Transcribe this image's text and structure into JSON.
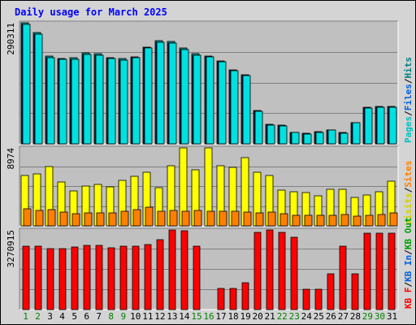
{
  "chart_data": {
    "type": "bar",
    "title": "Daily usage for March 2025",
    "categories": [
      "1",
      "2",
      "3",
      "4",
      "5",
      "6",
      "7",
      "8",
      "9",
      "10",
      "11",
      "12",
      "13",
      "14",
      "15",
      "16",
      "17",
      "18",
      "19",
      "20",
      "21",
      "22",
      "23",
      "24",
      "25",
      "26",
      "27",
      "28",
      "29",
      "30",
      "31"
    ],
    "weekend_days": [
      1,
      2,
      8,
      9,
      15,
      16,
      22,
      23,
      29,
      30
    ],
    "panels": [
      {
        "id": "top",
        "ymax_label": "290311",
        "ymax": 290311,
        "legend": [
          {
            "text": "Pages",
            "color": "#00c0c0"
          },
          {
            "text": "/",
            "color": "#000000"
          },
          {
            "text": "Files",
            "color": "#0060e0"
          },
          {
            "text": "/",
            "color": "#000000"
          },
          {
            "text": "Hits",
            "color": "#008080"
          }
        ],
        "series": [
          {
            "name": "Hits",
            "color": "#00a0a0",
            "values": [
              290311,
              266820,
              209800,
              205460,
              206200,
              218400,
              216500,
              207200,
              204300,
              209000,
              232800,
              247800,
              246200,
              230100,
              215800,
              211400,
              199200,
              178100,
              165400,
              79800,
              46300,
              44400,
              28000,
              24400,
              28400,
              32900,
              26400,
              50600,
              87600,
              89400,
              89400
            ]
          },
          {
            "name": "Files",
            "color": "#0060e0",
            "values": [
              286000,
              263000,
              206500,
              202300,
              203000,
              215000,
              213100,
              204000,
              201000,
              205800,
              229200,
              244000,
              242400,
              226500,
              212400,
              208000,
              196200,
              175300,
              162700,
              78600,
              45600,
              43700,
              27500,
              24000,
              28000,
              32400,
              26000,
              49800,
              86200,
              88000,
              88000
            ]
          },
          {
            "name": "Pages",
            "color": "#00e0e0",
            "values": [
              286000,
              263000,
              206500,
              202300,
              203000,
              215000,
              213100,
              204000,
              201000,
              205800,
              229200,
              244000,
              242400,
              226500,
              212400,
              208000,
              196200,
              175300,
              162700,
              78600,
              45600,
              43700,
              27500,
              24000,
              28000,
              32400,
              26000,
              49800,
              86200,
              88000,
              88000
            ]
          }
        ]
      },
      {
        "id": "middle",
        "ymax_label": "8974",
        "ymax": 8974,
        "legend": [
          {
            "text": "Visits",
            "color": "#d0d000"
          },
          {
            "text": "/",
            "color": "#000000"
          },
          {
            "text": "Sites",
            "color": "#ff8000"
          }
        ],
        "series": [
          {
            "name": "Visits",
            "color": "#ffff00",
            "values": [
              5840,
              5940,
              6780,
              5010,
              3990,
              4550,
              4790,
              4500,
              5190,
              5700,
              6170,
              4440,
              6960,
              8974,
              6440,
              8974,
              6900,
              6770,
              7880,
              6150,
              5790,
              4150,
              3960,
              3850,
              3470,
              4220,
              4230,
              3270,
              3520,
              3890,
              5150
            ]
          },
          {
            "name": "Sites",
            "color": "#ff8000",
            "values": [
              1990,
              1800,
              1830,
              1620,
              1370,
              1530,
              1540,
              1490,
              1640,
              1840,
              2180,
              1660,
              1730,
              1650,
              1740,
              1700,
              1640,
              1690,
              1600,
              1490,
              1550,
              1400,
              1210,
              1210,
              1240,
              1190,
              1310,
              1140,
              1210,
              1350,
              1470
            ]
          }
        ]
      },
      {
        "id": "bottom",
        "ymax_label": "3270915",
        "ymax": 3270915,
        "legend": [
          {
            "text": "KB F",
            "color": "#ff0000"
          },
          {
            "text": "/",
            "color": "#000000"
          },
          {
            "text": "KB In",
            "color": "#0060e0"
          },
          {
            "text": "/",
            "color": "#000000"
          },
          {
            "text": "KB Out",
            "color": "#00a000"
          }
        ],
        "series": [
          {
            "name": "KB F",
            "color": "#ff0000",
            "values": [
              2590000,
              2610000,
              2510000,
              2500000,
              2570000,
              2630000,
              2630000,
              2540000,
              2590000,
              2590000,
              2660000,
              2870000,
              3270915,
              3240000,
              2590000,
              0,
              860000,
              880000,
              1100000,
              3160000,
              3270915,
              3160000,
              2960000,
              820000,
              820000,
              1460000,
              2590000,
              1460000,
              3150000,
              3150000,
              3150000
            ]
          }
        ]
      }
    ]
  }
}
